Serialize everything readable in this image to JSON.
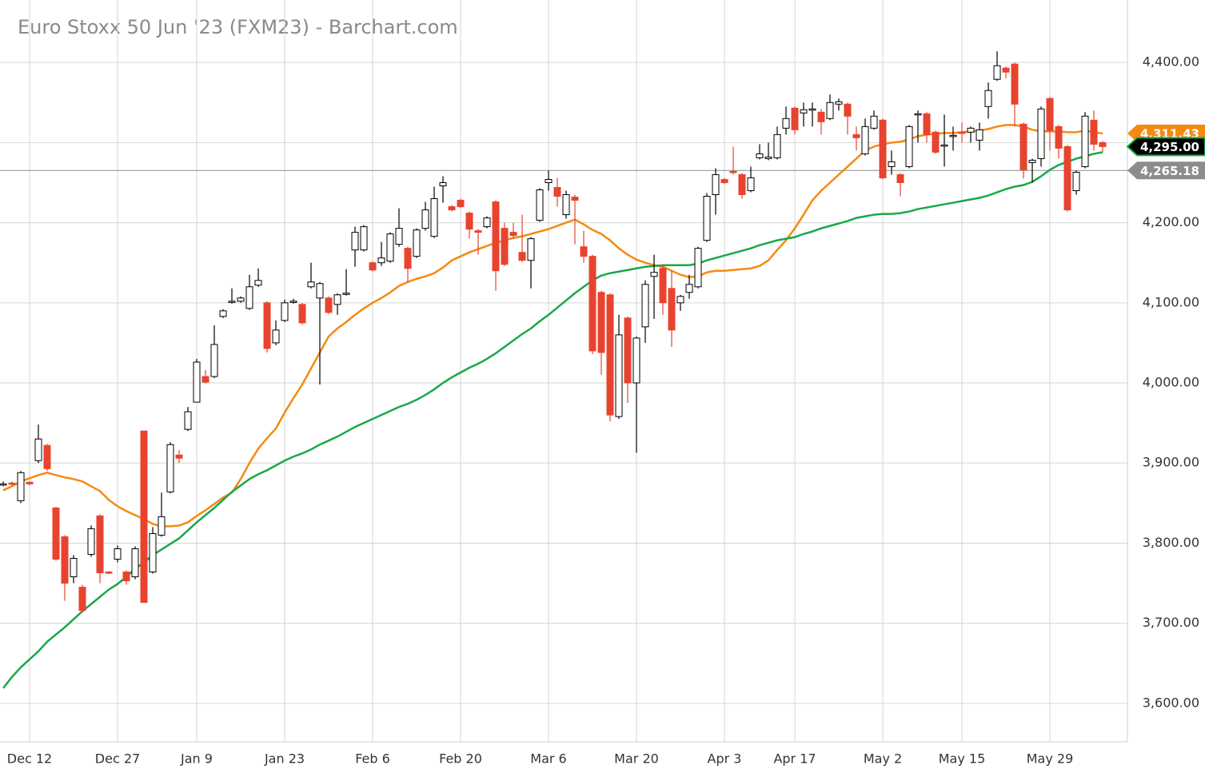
{
  "chart_data": {
    "type": "candlestick",
    "title": "Euro Stoxx 50 Jun '23 (FXM23) - Barchart.com",
    "up_color": "#ffffff",
    "down_color": "#e8432e",
    "grid": true,
    "ylim": [
      3552,
      4478
    ],
    "yticks": [
      {
        "value": 3600,
        "label": "3,600.00"
      },
      {
        "value": 3700,
        "label": "3,700.00"
      },
      {
        "value": 3800,
        "label": "3,800.00"
      },
      {
        "value": 3900,
        "label": "3,900.00"
      },
      {
        "value": 4000,
        "label": "4,000.00"
      },
      {
        "value": 4100,
        "label": "4,100.00"
      },
      {
        "value": 4200,
        "label": "4,200.00"
      },
      {
        "value": 4300,
        "label": "4,300.00"
      },
      {
        "value": 4400,
        "label": "4,400.00"
      }
    ],
    "categories": [
      null,
      null,
      null,
      "Dec 12",
      null,
      null,
      null,
      null,
      null,
      null,
      null,
      null,
      null,
      "Dec 27",
      null,
      null,
      null,
      null,
      null,
      null,
      null,
      null,
      "Jan 9",
      null,
      null,
      null,
      null,
      null,
      null,
      null,
      null,
      null,
      "Jan 23",
      null,
      null,
      null,
      null,
      null,
      null,
      null,
      null,
      null,
      "Feb 6",
      null,
      null,
      null,
      null,
      null,
      null,
      null,
      null,
      null,
      "Feb 20",
      null,
      null,
      null,
      null,
      null,
      null,
      null,
      null,
      null,
      "Mar 6",
      null,
      null,
      null,
      null,
      null,
      null,
      null,
      null,
      null,
      "Mar 20",
      null,
      null,
      null,
      null,
      null,
      null,
      null,
      null,
      null,
      "Apr 3",
      null,
      null,
      null,
      null,
      null,
      null,
      null,
      "Apr 17",
      null,
      null,
      null,
      null,
      null,
      null,
      null,
      null,
      null,
      "May 2",
      null,
      null,
      null,
      null,
      null,
      null,
      null,
      null,
      "May 15",
      null,
      null,
      null,
      null,
      null,
      null,
      null,
      null,
      null,
      "May 29",
      null,
      null,
      null,
      null,
      null,
      null
    ],
    "open": [
      3874,
      3875,
      3853,
      3876,
      3903,
      3922,
      3844,
      3808,
      3758,
      3745,
      3786,
      3834,
      3764,
      3780,
      3764,
      3758,
      3940,
      3764,
      3810,
      3864,
      3910,
      3942,
      3976,
      4008,
      4008,
      4083,
      4101,
      4102,
      4093,
      4122,
      4100,
      4050,
      4078,
      4101,
      4098,
      4120,
      4106,
      4106,
      4098,
      4111,
      4166,
      4166,
      4150,
      4150,
      4152,
      4173,
      4168,
      4158,
      4193,
      4183,
      4246,
      4220,
      4228,
      4212,
      4190,
      4195,
      4226,
      4193,
      4188,
      4163,
      4153,
      4203,
      4250,
      4244,
      4210,
      4232,
      4170,
      4158,
      4113,
      4110,
      3958,
      4081,
      4000,
      4070,
      4133,
      4143,
      4118,
      4100,
      4113,
      4120,
      4178,
      4235,
      4254,
      4264,
      4260,
      4240,
      4281,
      4280,
      4281,
      4318,
      4343,
      4337,
      4341,
      4338,
      4330,
      4348,
      4348,
      4310,
      4286,
      4318,
      4328,
      4270,
      4260,
      4270,
      4335,
      4336,
      4313,
      4296,
      4308,
      4313,
      4313,
      4303,
      4345,
      4379,
      4393,
      4398,
      4323,
      4275,
      4280,
      4355,
      4320,
      4295,
      4240,
      4270,
      4328,
      4300
    ],
    "high": [
      3877,
      3877,
      3890,
      3877,
      3948,
      3924,
      3845,
      3810,
      3785,
      3748,
      3822,
      3836,
      3765,
      3797,
      3766,
      3796,
      3940,
      3820,
      3863,
      3926,
      3916,
      3970,
      4030,
      4016,
      4072,
      4092,
      4118,
      4108,
      4135,
      4143,
      4102,
      4078,
      4104,
      4105,
      4100,
      4150,
      4126,
      4108,
      4112,
      4142,
      4195,
      4197,
      4152,
      4176,
      4188,
      4218,
      4170,
      4193,
      4226,
      4245,
      4258,
      4222,
      4230,
      4214,
      4192,
      4208,
      4228,
      4200,
      4200,
      4210,
      4182,
      4243,
      4265,
      4256,
      4240,
      4235,
      4190,
      4160,
      4115,
      4112,
      4085,
      4083,
      4058,
      4128,
      4160,
      4148,
      4140,
      4110,
      4135,
      4170,
      4237,
      4268,
      4256,
      4295,
      4262,
      4270,
      4298,
      4300,
      4320,
      4345,
      4345,
      4350,
      4350,
      4342,
      4360,
      4355,
      4350,
      4320,
      4330,
      4340,
      4330,
      4290,
      4262,
      4322,
      4340,
      4338,
      4315,
      4335,
      4320,
      4325,
      4320,
      4325,
      4375,
      4414,
      4395,
      4400,
      4325,
      4280,
      4345,
      4357,
      4322,
      4297,
      4265,
      4338,
      4340,
      4302
    ],
    "low": [
      3871,
      3872,
      3850,
      3872,
      3900,
      3890,
      3778,
      3728,
      3750,
      3713,
      3783,
      3750,
      3761,
      3776,
      3748,
      3755,
      3726,
      3762,
      3808,
      3862,
      3900,
      3940,
      3976,
      3999,
      4006,
      4081,
      4099,
      4100,
      4091,
      4120,
      4038,
      4047,
      4076,
      4099,
      4073,
      4118,
      3998,
      4086,
      4085,
      4109,
      4145,
      4164,
      4139,
      4146,
      4150,
      4170,
      4125,
      4156,
      4190,
      4181,
      4225,
      4214,
      4218,
      4180,
      4160,
      4193,
      4115,
      4146,
      4180,
      4151,
      4118,
      4201,
      4240,
      4220,
      4205,
      4173,
      4150,
      4036,
      4010,
      3952,
      3955,
      3975,
      3913,
      4050,
      4080,
      4085,
      4045,
      4090,
      4105,
      4118,
      4176,
      4210,
      4248,
      4260,
      4230,
      4238,
      4279,
      4278,
      4279,
      4310,
      4310,
      4320,
      4320,
      4310,
      4328,
      4340,
      4310,
      4290,
      4284,
      4316,
      4254,
      4260,
      4233,
      4268,
      4300,
      4300,
      4286,
      4270,
      4290,
      4300,
      4300,
      4290,
      4330,
      4377,
      4380,
      4320,
      4255,
      4250,
      4270,
      4290,
      4280,
      4214,
      4235,
      4268,
      4290,
      4288
    ],
    "close": [
      3874,
      3874,
      3888,
      3874,
      3930,
      3893,
      3780,
      3750,
      3781,
      3716,
      3818,
      3763,
      3763,
      3793,
      3753,
      3793,
      3726,
      3812,
      3833,
      3923,
      3906,
      3964,
      4026,
      4001,
      4048,
      4090,
      4102,
      4106,
      4120,
      4128,
      4043,
      4066,
      4100,
      4102,
      4075,
      4126,
      4124,
      4088,
      4110,
      4112,
      4188,
      4195,
      4141,
      4156,
      4186,
      4193,
      4143,
      4191,
      4216,
      4230,
      4250,
      4216,
      4220,
      4192,
      4188,
      4206,
      4140,
      4148,
      4184,
      4153,
      4180,
      4241,
      4254,
      4233,
      4235,
      4228,
      4158,
      4040,
      4038,
      3960,
      4060,
      4000,
      4056,
      4123,
      4138,
      4100,
      4066,
      4108,
      4123,
      4168,
      4233,
      4260,
      4250,
      4263,
      4235,
      4256,
      4286,
      4282,
      4310,
      4330,
      4316,
      4341,
      4342,
      4326,
      4350,
      4351,
      4333,
      4306,
      4320,
      4333,
      4256,
      4276,
      4250,
      4320,
      4336,
      4310,
      4288,
      4297,
      4309,
      4312,
      4318,
      4316,
      4365,
      4396,
      4388,
      4348,
      4266,
      4278,
      4342,
      4315,
      4293,
      4216,
      4263,
      4333,
      4298,
      4295
    ],
    "overlays": [
      {
        "color": "#f58a12",
        "values": [
          3866,
          3871,
          3877,
          3881,
          3885,
          3888,
          3885,
          3882,
          3880,
          3877,
          3871,
          3865,
          3854,
          3846,
          3840,
          3835,
          3830,
          3824,
          3821,
          3821,
          3822,
          3826,
          3834,
          3841,
          3849,
          3857,
          3863,
          3880,
          3900,
          3918,
          3931,
          3943,
          3963,
          3981,
          3998,
          4018,
          4038,
          4058,
          4068,
          4076,
          4085,
          4093,
          4100,
          4106,
          4113,
          4121,
          4126,
          4130,
          4133,
          4137,
          4144,
          4153,
          4158,
          4163,
          4167,
          4171,
          4175,
          4178,
          4181,
          4183,
          4186,
          4189,
          4192,
          4196,
          4200,
          4204,
          4198,
          4191,
          4186,
          4178,
          4168,
          4160,
          4154,
          4150,
          4147,
          4145,
          4140,
          4135,
          4132,
          4133,
          4138,
          4140,
          4140,
          4141,
          4142,
          4143,
          4146,
          4153,
          4166,
          4178,
          4193,
          4210,
          4228,
          4240,
          4250,
          4260,
          4270,
          4280,
          4290,
          4295,
          4298,
          4300,
          4301,
          4304,
          4308,
          4310,
          4311,
          4312,
          4312,
          4313,
          4314,
          4315,
          4317,
          4320,
          4322,
          4322,
          4320,
          4316,
          4314,
          4314,
          4314,
          4313,
          4313,
          4315,
          4313,
          4311.43
        ]
      },
      {
        "color": "#19a84a",
        "values": [
          3619,
          3633,
          3645,
          3655,
          3665,
          3677,
          3686,
          3695,
          3705,
          3715,
          3724,
          3733,
          3742,
          3749,
          3758,
          3768,
          3776,
          3785,
          3792,
          3799,
          3806,
          3816,
          3826,
          3835,
          3844,
          3854,
          3864,
          3872,
          3880,
          3886,
          3891,
          3897,
          3903,
          3908,
          3912,
          3917,
          3923,
          3928,
          3933,
          3939,
          3945,
          3950,
          3955,
          3960,
          3965,
          3970,
          3974,
          3979,
          3985,
          3992,
          4000,
          4007,
          4013,
          4019,
          4024,
          4030,
          4037,
          4045,
          4053,
          4061,
          4068,
          4077,
          4085,
          4094,
          4103,
          4112,
          4120,
          4128,
          4134,
          4137,
          4139,
          4141,
          4143,
          4145,
          4146,
          4147,
          4147,
          4147,
          4147,
          4149,
          4153,
          4156,
          4159,
          4162,
          4165,
          4168,
          4172,
          4175,
          4178,
          4180,
          4182,
          4186,
          4189,
          4193,
          4196,
          4199,
          4202,
          4206,
          4208,
          4210,
          4211,
          4211,
          4212,
          4214,
          4217,
          4219,
          4221,
          4223,
          4225,
          4227,
          4229,
          4231,
          4234,
          4238,
          4242,
          4245,
          4247,
          4251,
          4258,
          4266,
          4272,
          4276,
          4280,
          4283,
          4286,
          4288
        ]
      }
    ],
    "price_tags": [
      {
        "value": 4311.43,
        "label": "4,311.43",
        "color": "#f58a12"
      },
      {
        "value": 4265.18,
        "label": "4,265.18",
        "color": "#8c8c8c",
        "line": true
      },
      {
        "value": 4295,
        "label": "4,295.00",
        "color": "#000000",
        "border": "#19a84a"
      }
    ]
  }
}
